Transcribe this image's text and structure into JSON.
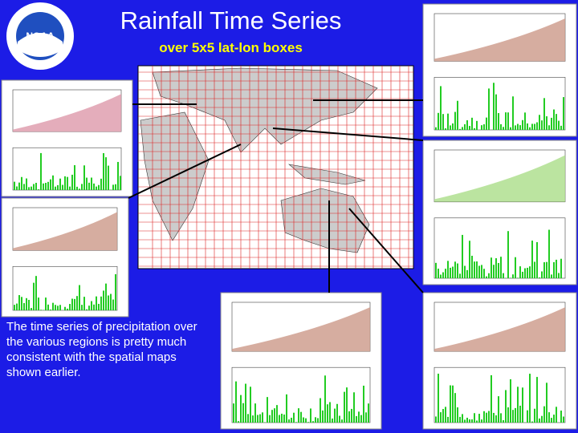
{
  "logo": {
    "text": "NOAA"
  },
  "header": {
    "title": "Rainfall Time Series",
    "subtitle": "over 5x5 lat-lon boxes"
  },
  "body": {
    "text": "The time series of  precipitation over the various regions is pretty much consistent with the spatial maps shown earlier."
  }
}
